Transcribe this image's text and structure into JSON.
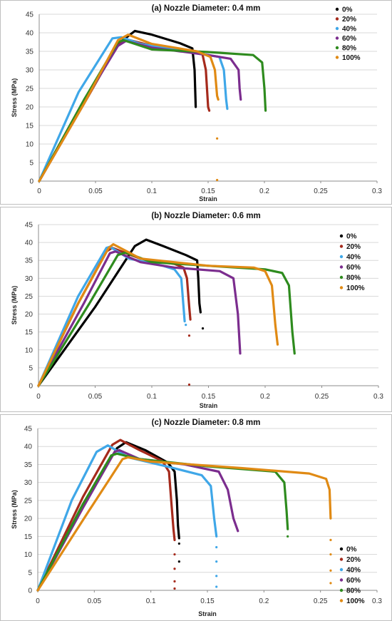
{
  "chart_data": [
    {
      "type": "line",
      "title": "(a) Nozzle Diameter: 0.4 mm",
      "xlabel": "Strain",
      "ylabel": "Stress (MPa)",
      "xlim": [
        0,
        0.3
      ],
      "ylim": [
        0,
        45
      ],
      "xticks": [
        "0",
        "0.05",
        "0.1",
        "0.15",
        "0.2",
        "0.25",
        "0.3"
      ],
      "yticks": [
        "0",
        "5",
        "10",
        "15",
        "20",
        "25",
        "30",
        "35",
        "40",
        "45"
      ],
      "grid": "horizontal",
      "legend_position": "top-right",
      "series": [
        {
          "name": "0%",
          "color": "#000000",
          "points": [
            [
              0,
              0
            ],
            [
              0.04,
              22
            ],
            [
              0.07,
              37
            ],
            [
              0.085,
              40.5
            ],
            [
              0.1,
              39.5
            ],
            [
              0.125,
              37.2
            ],
            [
              0.136,
              35.8
            ],
            [
              0.138,
              30
            ],
            [
              0.139,
              20
            ]
          ]
        },
        {
          "name": "20%",
          "color": "#a52a1c",
          "points": [
            [
              0,
              0
            ],
            [
              0.04,
              21
            ],
            [
              0.07,
              37
            ],
            [
              0.078,
              38.2
            ],
            [
              0.1,
              36.5
            ],
            [
              0.13,
              35
            ],
            [
              0.145,
              34.2
            ],
            [
              0.148,
              30
            ],
            [
              0.15,
              20
            ],
            [
              0.151,
              19
            ]
          ]
        },
        {
          "name": "40%",
          "color": "#3fa7e8",
          "points": [
            [
              0,
              0
            ],
            [
              0.035,
              24
            ],
            [
              0.065,
              38.5
            ],
            [
              0.073,
              38.8
            ],
            [
              0.09,
              37
            ],
            [
              0.13,
              35
            ],
            [
              0.16,
              33.5
            ],
            [
              0.164,
              30
            ],
            [
              0.166,
              22
            ],
            [
              0.167,
              19.5
            ]
          ]
        },
        {
          "name": "60%",
          "color": "#7b2d8e",
          "points": [
            [
              0,
              0
            ],
            [
              0.04,
              21.5
            ],
            [
              0.07,
              36.5
            ],
            [
              0.077,
              37.8
            ],
            [
              0.1,
              36
            ],
            [
              0.15,
              34
            ],
            [
              0.17,
              33
            ],
            [
              0.177,
              30
            ],
            [
              0.178,
              25
            ],
            [
              0.179,
              22
            ]
          ]
        },
        {
          "name": "80%",
          "color": "#2e8b1e",
          "points": [
            [
              0,
              0
            ],
            [
              0.04,
              22
            ],
            [
              0.07,
              37.5
            ],
            [
              0.075,
              38
            ],
            [
              0.1,
              35.5
            ],
            [
              0.15,
              34.8
            ],
            [
              0.19,
              34
            ],
            [
              0.198,
              32
            ],
            [
              0.2,
              25
            ],
            [
              0.201,
              19
            ]
          ]
        },
        {
          "name": "100%",
          "color": "#e08a14",
          "points": [
            [
              0,
              0
            ],
            [
              0.04,
              21
            ],
            [
              0.07,
              38
            ],
            [
              0.079,
              39.5
            ],
            [
              0.1,
              37
            ],
            [
              0.14,
              35
            ],
            [
              0.152,
              33.5
            ],
            [
              0.156,
              30
            ],
            [
              0.158,
              23
            ],
            [
              0.159,
              22
            ]
          ]
        }
      ],
      "scatter_points": [
        {
          "series": "100%",
          "x": 0.158,
          "y": 11.5
        },
        {
          "series": "100%",
          "x": 0.158,
          "y": 0.3
        }
      ]
    },
    {
      "type": "line",
      "title": "(b) Nozzle Diameter: 0.6 mm",
      "xlabel": "Strain",
      "ylabel": "Stress (MPa)",
      "xlim": [
        0,
        0.3
      ],
      "ylim": [
        0,
        45
      ],
      "xticks": [
        "0",
        "0.05",
        "0.1",
        "0.15",
        "0.2",
        "0.25",
        "0.3"
      ],
      "yticks": [
        "0",
        "5",
        "10",
        "15",
        "20",
        "25",
        "30",
        "35",
        "40",
        "45"
      ],
      "grid": "horizontal",
      "legend_position": "top-right",
      "series": [
        {
          "name": "0%",
          "color": "#000000",
          "points": [
            [
              0,
              0
            ],
            [
              0.05,
              22
            ],
            [
              0.085,
              39
            ],
            [
              0.095,
              40.8
            ],
            [
              0.11,
              39
            ],
            [
              0.13,
              36.5
            ],
            [
              0.14,
              35
            ],
            [
              0.141,
              30
            ],
            [
              0.142,
              23
            ],
            [
              0.143,
              20.5
            ]
          ]
        },
        {
          "name": "20%",
          "color": "#a52a1c",
          "points": [
            [
              0,
              0
            ],
            [
              0.035,
              23
            ],
            [
              0.06,
              37.5
            ],
            [
              0.065,
              38.5
            ],
            [
              0.09,
              35.5
            ],
            [
              0.12,
              34
            ],
            [
              0.128,
              33
            ],
            [
              0.131,
              30
            ],
            [
              0.133,
              22
            ],
            [
              0.134,
              18.5
            ]
          ]
        },
        {
          "name": "40%",
          "color": "#3fa7e8",
          "points": [
            [
              0,
              0
            ],
            [
              0.035,
              25
            ],
            [
              0.06,
              38.5
            ],
            [
              0.063,
              38.8
            ],
            [
              0.08,
              35.5
            ],
            [
              0.11,
              33.5
            ],
            [
              0.12,
              32.5
            ],
            [
              0.126,
              30
            ],
            [
              0.128,
              22
            ],
            [
              0.129,
              18
            ]
          ]
        },
        {
          "name": "60%",
          "color": "#7b2d8e",
          "points": [
            [
              0,
              0
            ],
            [
              0.04,
              23
            ],
            [
              0.063,
              37
            ],
            [
              0.068,
              37.5
            ],
            [
              0.09,
              34.5
            ],
            [
              0.12,
              33
            ],
            [
              0.16,
              32
            ],
            [
              0.172,
              30
            ],
            [
              0.176,
              20
            ],
            [
              0.178,
              9
            ]
          ]
        },
        {
          "name": "80%",
          "color": "#2e8b1e",
          "points": [
            [
              0,
              0
            ],
            [
              0.045,
              23
            ],
            [
              0.07,
              36.5
            ],
            [
              0.077,
              37.2
            ],
            [
              0.1,
              34.5
            ],
            [
              0.15,
              33.5
            ],
            [
              0.2,
              32.5
            ],
            [
              0.215,
              31.5
            ],
            [
              0.221,
              28
            ],
            [
              0.224,
              15
            ],
            [
              0.226,
              9
            ]
          ]
        },
        {
          "name": "100%",
          "color": "#e08a14",
          "points": [
            [
              0,
              0
            ],
            [
              0.035,
              23
            ],
            [
              0.062,
              38.5
            ],
            [
              0.066,
              39.5
            ],
            [
              0.09,
              35.5
            ],
            [
              0.15,
              33.5
            ],
            [
              0.19,
              33
            ],
            [
              0.2,
              32
            ],
            [
              0.206,
              28
            ],
            [
              0.209,
              17
            ],
            [
              0.211,
              11.5
            ]
          ]
        }
      ],
      "scatter_points": [
        {
          "series": "0%",
          "x": 0.145,
          "y": 16
        },
        {
          "series": "20%",
          "x": 0.133,
          "y": 14
        },
        {
          "series": "20%",
          "x": 0.133,
          "y": 0.3
        },
        {
          "series": "40%",
          "x": 0.13,
          "y": 17
        }
      ]
    },
    {
      "type": "line",
      "title": "(c) Nozzle Diameter: 0.8 mm",
      "xlabel": "Strain",
      "ylabel": "Stress (MPa)",
      "xlim": [
        0,
        0.3
      ],
      "ylim": [
        0,
        45
      ],
      "xticks": [
        "0",
        "0.05",
        "0.1",
        "0.15",
        "0.2",
        "0.25",
        "0.3"
      ],
      "yticks": [
        "0",
        "5",
        "10",
        "15",
        "20",
        "25",
        "30",
        "35",
        "40",
        "45"
      ],
      "grid": "horizontal",
      "legend_position": "bottom-right",
      "series": [
        {
          "name": "0%",
          "color": "#000000",
          "points": [
            [
              0,
              0
            ],
            [
              0.04,
              24
            ],
            [
              0.07,
              39.5
            ],
            [
              0.078,
              41.2
            ],
            [
              0.095,
              39
            ],
            [
              0.115,
              35.5
            ],
            [
              0.121,
              33
            ],
            [
              0.123,
              25
            ],
            [
              0.124,
              18
            ],
            [
              0.125,
              14.5
            ]
          ]
        },
        {
          "name": "20%",
          "color": "#a52a1c",
          "points": [
            [
              0,
              0
            ],
            [
              0.04,
              26
            ],
            [
              0.066,
              40.5
            ],
            [
              0.073,
              41.8
            ],
            [
              0.09,
              39
            ],
            [
              0.11,
              36
            ],
            [
              0.116,
              33
            ],
            [
              0.118,
              25
            ],
            [
              0.12,
              17
            ],
            [
              0.121,
              14
            ]
          ]
        },
        {
          "name": "40%",
          "color": "#3fa7e8",
          "points": [
            [
              0,
              0
            ],
            [
              0.03,
              25
            ],
            [
              0.052,
              38.5
            ],
            [
              0.062,
              40.3
            ],
            [
              0.08,
              37
            ],
            [
              0.12,
              34
            ],
            [
              0.145,
              32
            ],
            [
              0.153,
              29
            ],
            [
              0.156,
              20
            ],
            [
              0.158,
              15
            ]
          ]
        },
        {
          "name": "60%",
          "color": "#7b2d8e",
          "points": [
            [
              0,
              0
            ],
            [
              0.04,
              23
            ],
            [
              0.068,
              38.5
            ],
            [
              0.072,
              39
            ],
            [
              0.09,
              36.5
            ],
            [
              0.13,
              35
            ],
            [
              0.16,
              33
            ],
            [
              0.168,
              28
            ],
            [
              0.173,
              20
            ],
            [
              0.177,
              16.5
            ]
          ]
        },
        {
          "name": "80%",
          "color": "#2e8b1e",
          "points": [
            [
              0,
              0
            ],
            [
              0.04,
              24
            ],
            [
              0.065,
              37.5
            ],
            [
              0.07,
              38
            ],
            [
              0.09,
              36.5
            ],
            [
              0.15,
              34.5
            ],
            [
              0.21,
              33
            ],
            [
              0.218,
              30
            ],
            [
              0.22,
              22
            ],
            [
              0.221,
              17
            ]
          ]
        },
        {
          "name": "100%",
          "color": "#e08a14",
          "points": [
            [
              0,
              0
            ],
            [
              0.045,
              22
            ],
            [
              0.075,
              36.5
            ],
            [
              0.08,
              37
            ],
            [
              0.1,
              35.8
            ],
            [
              0.18,
              34
            ],
            [
              0.24,
              32.5
            ],
            [
              0.255,
              31
            ],
            [
              0.258,
              28
            ],
            [
              0.259,
              20
            ]
          ]
        }
      ],
      "scatter_points": [
        {
          "series": "0%",
          "x": 0.125,
          "y": 13
        },
        {
          "series": "0%",
          "x": 0.125,
          "y": 8
        },
        {
          "series": "20%",
          "x": 0.121,
          "y": 10
        },
        {
          "series": "20%",
          "x": 0.121,
          "y": 6
        },
        {
          "series": "20%",
          "x": 0.121,
          "y": 2.5
        },
        {
          "series": "20%",
          "x": 0.121,
          "y": 0.5
        },
        {
          "series": "40%",
          "x": 0.158,
          "y": 12
        },
        {
          "series": "40%",
          "x": 0.158,
          "y": 8
        },
        {
          "series": "40%",
          "x": 0.158,
          "y": 4
        },
        {
          "series": "40%",
          "x": 0.158,
          "y": 1
        },
        {
          "series": "80%",
          "x": 0.221,
          "y": 15
        },
        {
          "series": "100%",
          "x": 0.259,
          "y": 14
        },
        {
          "series": "100%",
          "x": 0.259,
          "y": 10
        },
        {
          "series": "100%",
          "x": 0.259,
          "y": 5.5
        },
        {
          "series": "100%",
          "x": 0.259,
          "y": 2
        }
      ]
    }
  ]
}
